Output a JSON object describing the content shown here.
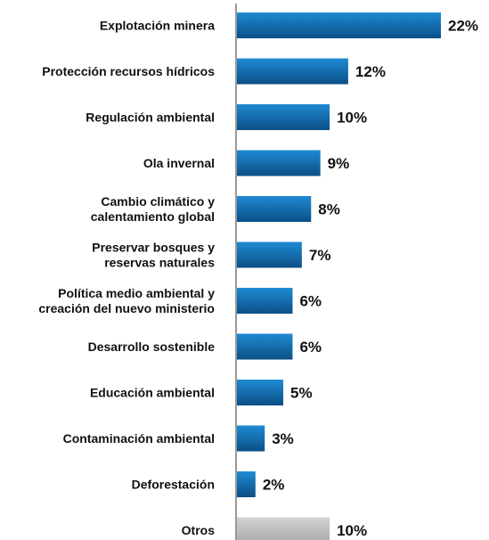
{
  "chart_data": {
    "type": "bar",
    "orientation": "horizontal",
    "categories": [
      [
        "Explotación minera"
      ],
      [
        "Protección recursos hídricos"
      ],
      [
        "Regulación ambiental"
      ],
      [
        "Ola invernal"
      ],
      [
        "Cambio climático y",
        "calentamiento global"
      ],
      [
        "Preservar bosques y",
        "reservas naturales"
      ],
      [
        "Política medio ambiental y",
        "creación del nuevo ministerio"
      ],
      [
        "Desarrollo sostenible"
      ],
      [
        "Educación ambiental"
      ],
      [
        "Contaminación ambiental"
      ],
      [
        "Deforestación"
      ],
      [
        "Otros"
      ]
    ],
    "values": [
      22,
      12,
      10,
      9,
      8,
      7,
      6,
      6,
      5,
      3,
      2,
      10
    ],
    "value_labels": [
      "22%",
      "12%",
      "10%",
      "9%",
      "8%",
      "7%",
      "6%",
      "6%",
      "5%",
      "3%",
      "2%",
      "10%"
    ],
    "highlight": [
      false,
      false,
      false,
      false,
      false,
      false,
      false,
      false,
      false,
      false,
      false,
      true
    ],
    "xlim": [
      0,
      22
    ],
    "grid": false,
    "colors": {
      "bar_dark": "#0b4f86",
      "bar_light": "#1f8ad3",
      "other_dark": "#a9a9a9",
      "other_light": "#d3d3d3",
      "axis": "#999999"
    }
  }
}
